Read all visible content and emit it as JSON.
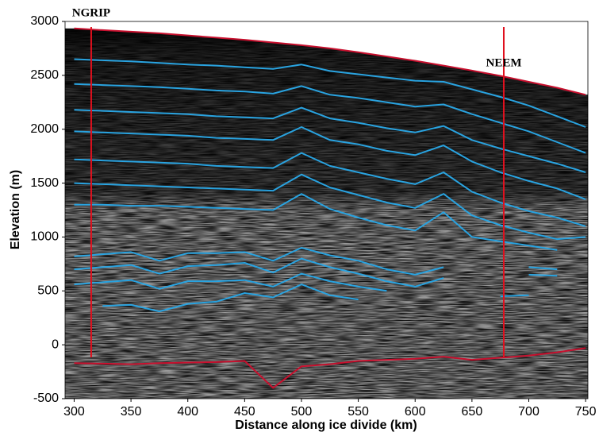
{
  "chart_data": {
    "type": "line",
    "xlabel": "Distance along ice divide (km)",
    "ylabel": "Elevation (m)",
    "xlim": [
      292,
      752
    ],
    "ylim": [
      -500,
      3000
    ],
    "xticks": [
      300,
      350,
      400,
      450,
      500,
      550,
      600,
      650,
      700,
      750
    ],
    "yticks": [
      -500,
      0,
      500,
      1000,
      1500,
      2000,
      2500,
      3000
    ],
    "x": [
      300,
      325,
      350,
      375,
      400,
      425,
      450,
      475,
      500,
      525,
      550,
      575,
      600,
      625,
      650,
      675,
      700,
      725,
      750
    ],
    "markers": [
      {
        "label": "NGRIP",
        "x": 315
      },
      {
        "label": "NEEM",
        "x": 678
      }
    ],
    "series": [
      {
        "color": "#c8102e",
        "values": [
          2935,
          2920,
          2905,
          2890,
          2870,
          2850,
          2830,
          2805,
          2780,
          2750,
          2715,
          2675,
          2635,
          2590,
          2545,
          2495,
          2440,
          2385,
          2320
        ]
      },
      {
        "color": "#c8102e",
        "values": [
          -170,
          -175,
          -180,
          -170,
          -165,
          -160,
          -150,
          -400,
          -200,
          -180,
          -150,
          -140,
          -130,
          -110,
          -140,
          -120,
          -100,
          -70,
          -30
        ]
      },
      {
        "color": "#29a3e0",
        "values": [
          2650,
          2640,
          2630,
          2615,
          2600,
          2590,
          2575,
          2560,
          2600,
          2540,
          2510,
          2480,
          2450,
          2440,
          2370,
          2300,
          2220,
          2120,
          2020
        ]
      },
      {
        "color": "#29a3e0",
        "values": [
          2420,
          2410,
          2400,
          2390,
          2375,
          2360,
          2350,
          2330,
          2400,
          2320,
          2290,
          2250,
          2210,
          2230,
          2140,
          2060,
          1980,
          1880,
          1780
        ]
      },
      {
        "color": "#29a3e0",
        "values": [
          2180,
          2170,
          2160,
          2150,
          2140,
          2120,
          2110,
          2100,
          2200,
          2100,
          2060,
          2010,
          1970,
          2030,
          1900,
          1820,
          1750,
          1680,
          1600
        ]
      },
      {
        "color": "#29a3e0",
        "values": [
          1980,
          1970,
          1960,
          1950,
          1940,
          1920,
          1910,
          1900,
          2020,
          1900,
          1860,
          1800,
          1760,
          1850,
          1700,
          1600,
          1520,
          1450,
          1350
        ]
      },
      {
        "color": "#29a3e0",
        "values": [
          1720,
          1710,
          1700,
          1690,
          1680,
          1660,
          1650,
          1640,
          1780,
          1660,
          1600,
          1540,
          1490,
          1600,
          1420,
          1320,
          1240,
          1180,
          1100
        ]
      },
      {
        "color": "#29a3e0",
        "values": [
          1500,
          1490,
          1480,
          1470,
          1460,
          1450,
          1440,
          1430,
          1580,
          1460,
          1390,
          1320,
          1270,
          1400,
          1200,
          1110,
          1040,
          980,
          1000
        ]
      },
      {
        "color": "#29a3e0",
        "values": [
          1300,
          1300,
          1290,
          1290,
          1280,
          1270,
          1260,
          1250,
          1400,
          1260,
          1180,
          1110,
          1060,
          1230,
          1000,
          960,
          920,
          880,
          null
        ]
      },
      {
        "color": "#29a3e0",
        "values": [
          820,
          840,
          860,
          780,
          850,
          850,
          860,
          780,
          900,
          830,
          780,
          700,
          650,
          720,
          null,
          null,
          720,
          700,
          null
        ]
      },
      {
        "color": "#29a3e0",
        "values": [
          700,
          720,
          740,
          660,
          730,
          740,
          760,
          670,
          800,
          720,
          660,
          590,
          540,
          620,
          null,
          null,
          650,
          640,
          null
        ]
      },
      {
        "color": "#29a3e0",
        "values": [
          560,
          580,
          600,
          520,
          590,
          590,
          600,
          540,
          660,
          590,
          540,
          500,
          null,
          null,
          null,
          450,
          460,
          null,
          null
        ]
      },
      {
        "color": "#29a3e0",
        "values": [
          null,
          360,
          370,
          310,
          380,
          400,
          480,
          440,
          560,
          460,
          420,
          null,
          null,
          null,
          null,
          null,
          null,
          null,
          null
        ]
      }
    ]
  }
}
